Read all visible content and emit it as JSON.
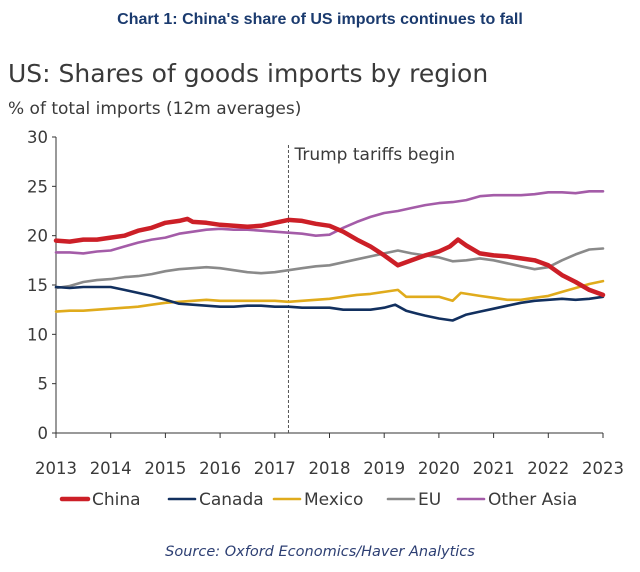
{
  "chart_data": {
    "type": "line",
    "heading": "Chart 1: China's share of US imports continues to fall",
    "title": "US: Shares of goods imports by region",
    "ylabel": "% of total imports (12m averages)",
    "xlabel": "",
    "ylim": [
      0,
      30
    ],
    "xlim": [
      2013,
      2023
    ],
    "yticks": [
      "0",
      "5",
      "10",
      "15",
      "20",
      "25",
      "30"
    ],
    "xticks": [
      "2013",
      "2014",
      "2015",
      "2016",
      "2017",
      "2018",
      "2019",
      "2020",
      "2021",
      "2022",
      "2023"
    ],
    "grid": false,
    "legend_position": "bottom",
    "annotation": {
      "text": "Trump tariffs begin",
      "x": 2017.25
    },
    "source": "Source: Oxford Economics/Haver Analytics",
    "series": [
      {
        "name": "China",
        "color": "#cc1f27",
        "points": [
          [
            2013.0,
            19.5
          ],
          [
            2013.25,
            19.4
          ],
          [
            2013.5,
            19.6
          ],
          [
            2013.75,
            19.6
          ],
          [
            2014.0,
            19.8
          ],
          [
            2014.25,
            20.0
          ],
          [
            2014.5,
            20.5
          ],
          [
            2014.75,
            20.8
          ],
          [
            2015.0,
            21.3
          ],
          [
            2015.25,
            21.5
          ],
          [
            2015.4,
            21.7
          ],
          [
            2015.5,
            21.4
          ],
          [
            2015.75,
            21.3
          ],
          [
            2016.0,
            21.1
          ],
          [
            2016.25,
            21.0
          ],
          [
            2016.5,
            20.9
          ],
          [
            2016.75,
            21.0
          ],
          [
            2017.0,
            21.3
          ],
          [
            2017.25,
            21.6
          ],
          [
            2017.5,
            21.5
          ],
          [
            2017.75,
            21.2
          ],
          [
            2018.0,
            21.0
          ],
          [
            2018.25,
            20.4
          ],
          [
            2018.5,
            19.6
          ],
          [
            2018.75,
            18.9
          ],
          [
            2019.0,
            18.0
          ],
          [
            2019.25,
            17.0
          ],
          [
            2019.5,
            17.5
          ],
          [
            2019.75,
            18.0
          ],
          [
            2020.0,
            18.4
          ],
          [
            2020.2,
            18.9
          ],
          [
            2020.35,
            19.6
          ],
          [
            2020.5,
            19.0
          ],
          [
            2020.75,
            18.2
          ],
          [
            2021.0,
            18.0
          ],
          [
            2021.25,
            17.9
          ],
          [
            2021.5,
            17.7
          ],
          [
            2021.75,
            17.5
          ],
          [
            2022.0,
            17.0
          ],
          [
            2022.25,
            16.0
          ],
          [
            2022.5,
            15.3
          ],
          [
            2022.75,
            14.5
          ],
          [
            2023.0,
            14.0
          ]
        ]
      },
      {
        "name": "Canada",
        "color": "#12305f",
        "points": [
          [
            2013.0,
            14.8
          ],
          [
            2013.25,
            14.7
          ],
          [
            2013.5,
            14.8
          ],
          [
            2013.75,
            14.8
          ],
          [
            2014.0,
            14.8
          ],
          [
            2014.25,
            14.5
          ],
          [
            2014.5,
            14.2
          ],
          [
            2014.75,
            13.9
          ],
          [
            2015.0,
            13.5
          ],
          [
            2015.25,
            13.1
          ],
          [
            2015.5,
            13.0
          ],
          [
            2015.75,
            12.9
          ],
          [
            2016.0,
            12.8
          ],
          [
            2016.25,
            12.8
          ],
          [
            2016.5,
            12.9
          ],
          [
            2016.75,
            12.9
          ],
          [
            2017.0,
            12.8
          ],
          [
            2017.25,
            12.8
          ],
          [
            2017.5,
            12.7
          ],
          [
            2017.75,
            12.7
          ],
          [
            2018.0,
            12.7
          ],
          [
            2018.25,
            12.5
          ],
          [
            2018.5,
            12.5
          ],
          [
            2018.75,
            12.5
          ],
          [
            2019.0,
            12.7
          ],
          [
            2019.2,
            13.0
          ],
          [
            2019.4,
            12.4
          ],
          [
            2019.6,
            12.1
          ],
          [
            2019.75,
            11.9
          ],
          [
            2020.0,
            11.6
          ],
          [
            2020.25,
            11.4
          ],
          [
            2020.5,
            12.0
          ],
          [
            2020.75,
            12.3
          ],
          [
            2021.0,
            12.6
          ],
          [
            2021.25,
            12.9
          ],
          [
            2021.5,
            13.2
          ],
          [
            2021.75,
            13.4
          ],
          [
            2022.0,
            13.5
          ],
          [
            2022.25,
            13.6
          ],
          [
            2022.5,
            13.5
          ],
          [
            2022.75,
            13.6
          ],
          [
            2023.0,
            13.8
          ]
        ]
      },
      {
        "name": "Mexico",
        "color": "#e0ab1c",
        "points": [
          [
            2013.0,
            12.3
          ],
          [
            2013.25,
            12.4
          ],
          [
            2013.5,
            12.4
          ],
          [
            2013.75,
            12.5
          ],
          [
            2014.0,
            12.6
          ],
          [
            2014.25,
            12.7
          ],
          [
            2014.5,
            12.8
          ],
          [
            2014.75,
            13.0
          ],
          [
            2015.0,
            13.2
          ],
          [
            2015.25,
            13.3
          ],
          [
            2015.5,
            13.4
          ],
          [
            2015.75,
            13.5
          ],
          [
            2016.0,
            13.4
          ],
          [
            2016.25,
            13.4
          ],
          [
            2016.5,
            13.4
          ],
          [
            2016.75,
            13.4
          ],
          [
            2017.0,
            13.4
          ],
          [
            2017.25,
            13.3
          ],
          [
            2017.5,
            13.4
          ],
          [
            2017.75,
            13.5
          ],
          [
            2018.0,
            13.6
          ],
          [
            2018.25,
            13.8
          ],
          [
            2018.5,
            14.0
          ],
          [
            2018.75,
            14.1
          ],
          [
            2019.0,
            14.3
          ],
          [
            2019.25,
            14.5
          ],
          [
            2019.4,
            13.8
          ],
          [
            2019.75,
            13.8
          ],
          [
            2020.0,
            13.8
          ],
          [
            2020.25,
            13.4
          ],
          [
            2020.4,
            14.2
          ],
          [
            2020.75,
            13.9
          ],
          [
            2021.0,
            13.7
          ],
          [
            2021.25,
            13.5
          ],
          [
            2021.5,
            13.5
          ],
          [
            2021.75,
            13.7
          ],
          [
            2022.0,
            13.9
          ],
          [
            2022.25,
            14.3
          ],
          [
            2022.5,
            14.7
          ],
          [
            2022.75,
            15.1
          ],
          [
            2023.0,
            15.4
          ]
        ]
      },
      {
        "name": "EU",
        "color": "#8a8a8a",
        "points": [
          [
            2013.0,
            14.7
          ],
          [
            2013.25,
            14.9
          ],
          [
            2013.5,
            15.3
          ],
          [
            2013.75,
            15.5
          ],
          [
            2014.0,
            15.6
          ],
          [
            2014.25,
            15.8
          ],
          [
            2014.5,
            15.9
          ],
          [
            2014.75,
            16.1
          ],
          [
            2015.0,
            16.4
          ],
          [
            2015.25,
            16.6
          ],
          [
            2015.5,
            16.7
          ],
          [
            2015.75,
            16.8
          ],
          [
            2016.0,
            16.7
          ],
          [
            2016.25,
            16.5
          ],
          [
            2016.5,
            16.3
          ],
          [
            2016.75,
            16.2
          ],
          [
            2017.0,
            16.3
          ],
          [
            2017.25,
            16.5
          ],
          [
            2017.5,
            16.7
          ],
          [
            2017.75,
            16.9
          ],
          [
            2018.0,
            17.0
          ],
          [
            2018.25,
            17.3
          ],
          [
            2018.5,
            17.6
          ],
          [
            2018.75,
            17.9
          ],
          [
            2019.0,
            18.2
          ],
          [
            2019.25,
            18.5
          ],
          [
            2019.5,
            18.2
          ],
          [
            2019.75,
            18.0
          ],
          [
            2020.0,
            17.8
          ],
          [
            2020.25,
            17.4
          ],
          [
            2020.5,
            17.5
          ],
          [
            2020.75,
            17.7
          ],
          [
            2021.0,
            17.5
          ],
          [
            2021.25,
            17.2
          ],
          [
            2021.5,
            16.9
          ],
          [
            2021.75,
            16.6
          ],
          [
            2022.0,
            16.8
          ],
          [
            2022.25,
            17.5
          ],
          [
            2022.5,
            18.1
          ],
          [
            2022.75,
            18.6
          ],
          [
            2023.0,
            18.7
          ]
        ]
      },
      {
        "name": "Other Asia",
        "color": "#a45ca8",
        "points": [
          [
            2013.0,
            18.3
          ],
          [
            2013.25,
            18.3
          ],
          [
            2013.5,
            18.2
          ],
          [
            2013.75,
            18.4
          ],
          [
            2014.0,
            18.5
          ],
          [
            2014.25,
            18.9
          ],
          [
            2014.5,
            19.3
          ],
          [
            2014.75,
            19.6
          ],
          [
            2015.0,
            19.8
          ],
          [
            2015.25,
            20.2
          ],
          [
            2015.5,
            20.4
          ],
          [
            2015.75,
            20.6
          ],
          [
            2016.0,
            20.7
          ],
          [
            2016.25,
            20.6
          ],
          [
            2016.5,
            20.6
          ],
          [
            2016.75,
            20.5
          ],
          [
            2017.0,
            20.4
          ],
          [
            2017.25,
            20.3
          ],
          [
            2017.5,
            20.2
          ],
          [
            2017.75,
            20.0
          ],
          [
            2018.0,
            20.1
          ],
          [
            2018.25,
            20.8
          ],
          [
            2018.5,
            21.4
          ],
          [
            2018.75,
            21.9
          ],
          [
            2019.0,
            22.3
          ],
          [
            2019.25,
            22.5
          ],
          [
            2019.5,
            22.8
          ],
          [
            2019.75,
            23.1
          ],
          [
            2020.0,
            23.3
          ],
          [
            2020.25,
            23.4
          ],
          [
            2020.5,
            23.6
          ],
          [
            2020.75,
            24.0
          ],
          [
            2021.0,
            24.1
          ],
          [
            2021.25,
            24.1
          ],
          [
            2021.5,
            24.1
          ],
          [
            2021.75,
            24.2
          ],
          [
            2022.0,
            24.4
          ],
          [
            2022.25,
            24.4
          ],
          [
            2022.5,
            24.3
          ],
          [
            2022.75,
            24.5
          ],
          [
            2023.0,
            24.5
          ]
        ]
      }
    ]
  }
}
